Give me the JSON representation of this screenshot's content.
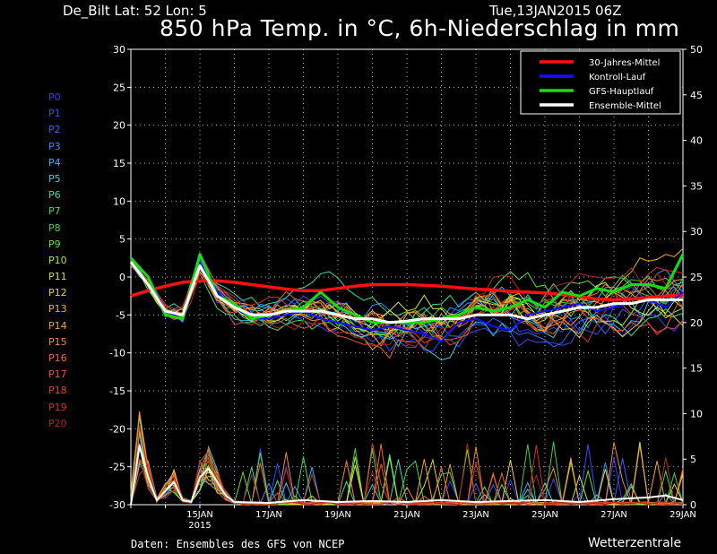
{
  "header": {
    "station": "De_Bilt   Lat: 52 Lon: 5",
    "datetime": "Tue,13JAN2015 06Z",
    "title": "850 hPa Temp. in °C, 6h-Niederschlag in mm"
  },
  "members": [
    "P0",
    "P1",
    "P2",
    "P3",
    "P4",
    "P5",
    "P6",
    "P7",
    "P8",
    "P9",
    "P10",
    "P11",
    "P12",
    "P13",
    "P14",
    "P15",
    "P16",
    "P17",
    "P18",
    "P19",
    "P20"
  ],
  "member_colors": [
    "#3a3aff",
    "#2d4dff",
    "#2f63ff",
    "#2f8dff",
    "#22b7ff",
    "#24d2e0",
    "#24e0a0",
    "#32e060",
    "#3ed040",
    "#62e032",
    "#a0e830",
    "#d0e030",
    "#f0d030",
    "#f0b020",
    "#f0a030",
    "#f08a30",
    "#f06a30",
    "#f05030",
    "#e04020",
    "#d03020",
    "#b02818"
  ],
  "footer": {
    "source": "Daten: Ensembles des GFS von NCEP",
    "brand": "Wetterzentrale"
  },
  "legend": [
    {
      "label": "30-Jahres-Mittel",
      "color": "#ff1010"
    },
    {
      "label": "Kontroll-Lauf",
      "color": "#1010ff"
    },
    {
      "label": "GFS-Hauptlauf",
      "color": "#10e010"
    },
    {
      "label": "Ensemble-Mittel",
      "color": "#ffffff"
    }
  ],
  "chart_data": {
    "type": "line",
    "title": "850 hPa Temp. in °C, 6h-Niederschlag in mm",
    "x_tick_labels": [
      "15JAN",
      "17JAN",
      "19JAN",
      "21JAN",
      "23JAN",
      "25JAN",
      "27JAN",
      "29JAN"
    ],
    "x_sub_label": "2015",
    "x_days": [
      0,
      16
    ],
    "x_tick_days": [
      2,
      4,
      6,
      8,
      10,
      12,
      14,
      16
    ],
    "left_axis": {
      "ylim": [
        -30,
        30
      ],
      "ticks": [
        30,
        25,
        20,
        15,
        10,
        5,
        0,
        -5,
        -10,
        -15,
        -20,
        -25,
        -30
      ]
    },
    "right_axis": {
      "ylim": [
        0,
        50
      ],
      "ticks": [
        50,
        45,
        40,
        35,
        30,
        25,
        20,
        15,
        10,
        5,
        0
      ]
    },
    "grid": true,
    "legend_position": "top-right",
    "temperature_series": [
      {
        "name": "30-Jahres-Mittel",
        "color": "#ff1010",
        "width": 3.5,
        "x": [
          0,
          0.5,
          1,
          1.5,
          2,
          2.5,
          3,
          3.5,
          4,
          4.5,
          5,
          5.5,
          6,
          6.5,
          7,
          7.5,
          8,
          8.5,
          9,
          9.5,
          10,
          10.5,
          11,
          11.5,
          12,
          12.5,
          13,
          13.5,
          14,
          14.5,
          15,
          15.5,
          16
        ],
        "y": [
          -2.5,
          -1.8,
          -1.2,
          -0.7,
          -0.5,
          -0.5,
          -0.7,
          -1.0,
          -1.3,
          -1.6,
          -1.8,
          -1.8,
          -1.5,
          -1.2,
          -1.0,
          -1.0,
          -1.0,
          -1.1,
          -1.2,
          -1.4,
          -1.6,
          -1.7,
          -1.9,
          -2.0,
          -2.1,
          -2.3,
          -2.6,
          -2.9,
          -3.0,
          -2.9,
          -2.7,
          -2.5,
          -2.4
        ]
      },
      {
        "name": "Kontroll-Lauf",
        "color": "#1010ff",
        "width": 2,
        "x": [
          0,
          0.5,
          1,
          1.5,
          2,
          2.5,
          3,
          3.5,
          4,
          4.5,
          5,
          5.5,
          6,
          6.5,
          7,
          7.5,
          8,
          8.5,
          9,
          9.5,
          10,
          10.5,
          11,
          11.5,
          12,
          12.5,
          13,
          13.5,
          14,
          14.5,
          15,
          15.5,
          16
        ],
        "y": [
          2.5,
          0,
          -4.5,
          -5.5,
          2,
          -2,
          -4,
          -5.5,
          -5.5,
          -5,
          -4.5,
          -5.5,
          -6,
          -6.5,
          -7,
          -6.5,
          -7,
          -7.5,
          -8.5,
          -6,
          -5.5,
          -6.5,
          -7,
          -5,
          -4.5,
          -4,
          -3.5,
          -4.5,
          -4,
          -3.5,
          -3,
          -4,
          -2
        ]
      },
      {
        "name": "GFS-Hauptlauf",
        "color": "#10e010",
        "width": 3,
        "x": [
          0,
          0.5,
          1,
          1.5,
          2,
          2.5,
          3,
          3.5,
          4,
          4.5,
          5,
          5.5,
          6,
          6.5,
          7,
          7.5,
          8,
          8.5,
          9,
          9.5,
          10,
          10.5,
          11,
          11.5,
          12,
          12.5,
          13,
          13.5,
          14,
          14.5,
          15,
          15.5,
          16
        ],
        "y": [
          2.5,
          0,
          -5,
          -5.5,
          3,
          -2.5,
          -3.5,
          -5.5,
          -5,
          -4.5,
          -4,
          -2,
          -4,
          -5,
          -6,
          -6,
          -6,
          -6,
          -5.5,
          -5,
          -4,
          -4.5,
          -4,
          -3,
          -4,
          -2,
          -2.5,
          -1.5,
          -2,
          -1,
          -1,
          -1.5,
          3
        ]
      },
      {
        "name": "Ensemble-Mittel",
        "color": "#ffffff",
        "width": 3,
        "x": [
          0,
          0.5,
          1,
          1.5,
          2,
          2.5,
          3,
          3.5,
          4,
          4.5,
          5,
          5.5,
          6,
          6.5,
          7,
          7.5,
          8,
          8.5,
          9,
          9.5,
          10,
          10.5,
          11,
          11.5,
          12,
          12.5,
          13,
          13.5,
          14,
          14.5,
          15,
          15.5,
          16
        ],
        "y": [
          2,
          -1,
          -4.5,
          -5,
          1.5,
          -2.5,
          -4,
          -5,
          -5,
          -4.5,
          -4.5,
          -4.5,
          -5,
          -5.5,
          -5.5,
          -6,
          -5.8,
          -5.5,
          -5.5,
          -5.5,
          -5,
          -5,
          -5,
          -5.5,
          -5,
          -4.5,
          -4,
          -4,
          -3.5,
          -3.5,
          -3,
          -3,
          -3
        ]
      }
    ],
    "precip_series": [
      {
        "name": "Ensemble-Mittel",
        "color": "#ffffff",
        "width": 2,
        "x": [
          0,
          0.25,
          0.5,
          0.75,
          1,
          1.25,
          1.5,
          1.75,
          2,
          2.25,
          2.5,
          2.75,
          3,
          4,
          5,
          6,
          7,
          8,
          9,
          10,
          11,
          12,
          13,
          14,
          15,
          15.5,
          16
        ],
        "y": [
          0,
          6.5,
          3,
          0.5,
          1.5,
          2.5,
          0.5,
          0.3,
          3,
          4,
          2.5,
          1,
          0.3,
          0.2,
          0.5,
          0.3,
          0.4,
          0.3,
          0.5,
          0.3,
          0.4,
          0.5,
          0.3,
          0.6,
          0.8,
          1,
          0.5
        ]
      }
    ]
  }
}
